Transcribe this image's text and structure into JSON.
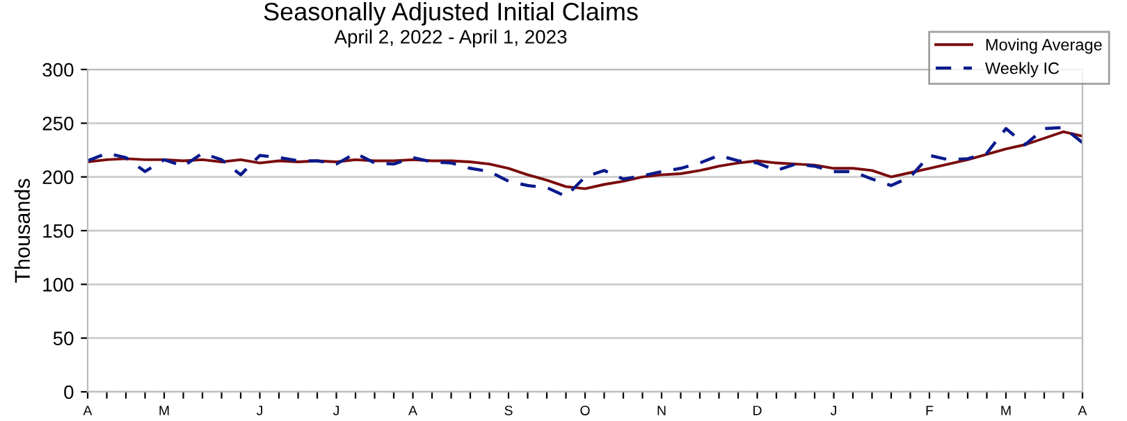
{
  "chart_data": {
    "type": "line",
    "title": "Seasonally Adjusted Initial Claims",
    "subtitle": "April 2, 2022 - April 1, 2023",
    "ylabel": "Thousands",
    "categories": [
      "A",
      null,
      null,
      null,
      "M",
      null,
      null,
      null,
      null,
      "J",
      null,
      null,
      null,
      "J",
      null,
      null,
      null,
      "A",
      null,
      null,
      null,
      null,
      "S",
      null,
      null,
      null,
      "O",
      null,
      null,
      null,
      "N",
      null,
      null,
      null,
      null,
      "D",
      null,
      null,
      null,
      "J",
      null,
      null,
      null,
      null,
      "F",
      null,
      null,
      null,
      "M",
      null,
      null,
      null,
      "A"
    ],
    "series": [
      {
        "name": "Moving Average",
        "color": "#7b0c0c",
        "line_style": "solid",
        "values": [
          214,
          216,
          217,
          216,
          216,
          215,
          216,
          214,
          216,
          213,
          215,
          214,
          215,
          214,
          216,
          215,
          215,
          216,
          215,
          215,
          214,
          212,
          208,
          202,
          197,
          191,
          189,
          193,
          196,
          200,
          202,
          203,
          206,
          210,
          213,
          215,
          213,
          212,
          211,
          208,
          208,
          206,
          200,
          204,
          208,
          212,
          216,
          221,
          226,
          230,
          236,
          242,
          238
        ]
      },
      {
        "name": "Weekly IC",
        "color": "#0a1a8c",
        "line_style": "dashed",
        "values": [
          215,
          222,
          218,
          205,
          216,
          210,
          222,
          216,
          202,
          220,
          218,
          215,
          215,
          212,
          222,
          213,
          212,
          218,
          214,
          213,
          208,
          205,
          196,
          192,
          190,
          182,
          200,
          206,
          198,
          201,
          205,
          208,
          213,
          220,
          215,
          213,
          206,
          212,
          210,
          205,
          205,
          198,
          192,
          200,
          220,
          216,
          217,
          222,
          245,
          230,
          245,
          246,
          232
        ]
      }
    ],
    "ylim": [
      0,
      300
    ],
    "yticks": [
      0,
      50,
      100,
      150,
      200,
      250,
      300
    ],
    "grid": "y",
    "legend": "top right"
  }
}
